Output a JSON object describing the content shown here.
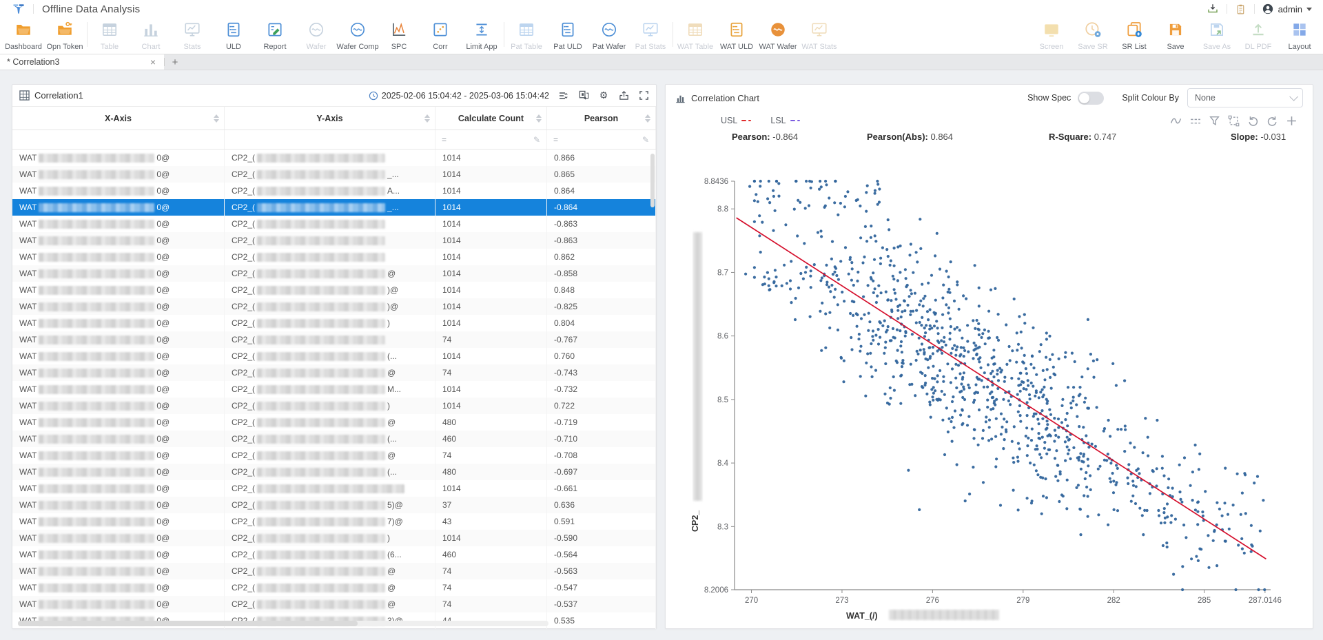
{
  "app": {
    "title": "Offline Data Analysis"
  },
  "header_right": {
    "user": "admin"
  },
  "toolbar": {
    "groups": [
      {
        "items": [
          {
            "label": "Dashboard",
            "icon": "folder",
            "enabled": true,
            "color": "#f09e2e"
          },
          {
            "label": "Opn Token",
            "icon": "folder-key",
            "enabled": true,
            "color": "#f09e2e"
          }
        ]
      },
      {
        "items": [
          {
            "label": "Table",
            "icon": "table",
            "enabled": false,
            "color": "#c6d2de"
          },
          {
            "label": "Chart",
            "icon": "bars",
            "enabled": false,
            "color": "#c6d2de"
          },
          {
            "label": "Stats",
            "icon": "monitor",
            "enabled": false,
            "color": "#c6d2de"
          },
          {
            "label": "ULD",
            "icon": "doc",
            "enabled": true,
            "color": "#4e8fd6"
          },
          {
            "label": "Report",
            "icon": "report",
            "enabled": true,
            "color": "#4e8fd6",
            "color2": "#3da05a"
          },
          {
            "label": "Wafer",
            "icon": "wafer",
            "enabled": false,
            "color": "#c6d2de"
          },
          {
            "label": "Wafer Comp",
            "icon": "wafer",
            "enabled": true,
            "color": "#4e8fd6"
          },
          {
            "label": "SPC",
            "icon": "spc",
            "enabled": true,
            "color": "#5b6770",
            "color2": "#e8833a"
          },
          {
            "label": "Corr",
            "icon": "corr",
            "enabled": true,
            "color": "#4e8fd6",
            "color2": "#e8a23a"
          },
          {
            "label": "Limit App",
            "icon": "limit",
            "enabled": true,
            "color": "#4e8fd6"
          }
        ]
      },
      {
        "items": [
          {
            "label": "Pat Table",
            "icon": "table",
            "enabled": false,
            "color": "#bdd5ef"
          },
          {
            "label": "Pat ULD",
            "icon": "doc",
            "enabled": true,
            "color": "#4e8fd6"
          },
          {
            "label": "Pat Wafer",
            "icon": "wafer",
            "enabled": true,
            "color": "#4e8fd6"
          },
          {
            "label": "Pat Stats",
            "icon": "monitor",
            "enabled": false,
            "color": "#bdd5ef"
          }
        ]
      },
      {
        "items": [
          {
            "label": "WAT Table",
            "icon": "table",
            "enabled": false,
            "color": "#f0ddbc"
          },
          {
            "label": "WAT ULD",
            "icon": "doc",
            "enabled": true,
            "color": "#e8a23a"
          },
          {
            "label": "WAT Wafer",
            "icon": "wafer-fill",
            "enabled": true,
            "color": "#e8913a"
          },
          {
            "label": "WAT Stats",
            "icon": "monitor",
            "enabled": false,
            "color": "#f0ddbc"
          }
        ]
      }
    ],
    "right_items": [
      {
        "label": "Screen",
        "icon": "screen",
        "enabled": false,
        "color": "#f3dfae"
      },
      {
        "label": "Save SR",
        "icon": "clock-badge",
        "enabled": false,
        "color": "#f0cfa0"
      },
      {
        "label": "SR List",
        "icon": "copy-badge",
        "enabled": true,
        "color": "#ef9d3c"
      },
      {
        "label": "Save",
        "icon": "floppy",
        "enabled": true,
        "color": "#ef9d3c"
      },
      {
        "label": "Save As",
        "icon": "floppy-arrow",
        "enabled": false,
        "color": "#bdd5ef"
      },
      {
        "label": "DL PDF",
        "icon": "upload",
        "enabled": false,
        "color": "#c5ddc5"
      },
      {
        "label": "Layout",
        "icon": "layout",
        "enabled": true,
        "color": "#84a9e8"
      }
    ]
  },
  "tabs": {
    "active_label": "* Correlation3",
    "close_label": "×",
    "add_label": "+"
  },
  "table_panel": {
    "title": "Correlation1",
    "date_range": "2025-02-06 15:04:42 - 2025-03-06 15:04:42",
    "columns": [
      "X-Axis",
      "Y-Axis",
      "Calculate Count",
      "Pearson"
    ],
    "filter_operator": "=",
    "header_tools": [
      "collapse-icon",
      "swap-icon",
      "gear-icon",
      "export-icon",
      "fullscreen-icon"
    ],
    "row_prefixes": {
      "x": "WAT",
      "x_suffix": "0@",
      "y": "CP2_("
    },
    "rows": [
      {
        "count": "1014",
        "pearson": "0.866",
        "ys": ""
      },
      {
        "count": "1014",
        "pearson": "0.865",
        "ys": "_..."
      },
      {
        "count": "1014",
        "pearson": "0.864",
        "ys": "A..."
      },
      {
        "count": "1014",
        "pearson": "-0.864",
        "ys": "_...",
        "sel": true
      },
      {
        "count": "1014",
        "pearson": "-0.863",
        "ys": ""
      },
      {
        "count": "1014",
        "pearson": "-0.863",
        "ys": ""
      },
      {
        "count": "1014",
        "pearson": "0.862",
        "ys": ""
      },
      {
        "count": "1014",
        "pearson": "-0.858",
        "ys": "@"
      },
      {
        "count": "1014",
        "pearson": "0.848",
        "ys": ")@"
      },
      {
        "count": "1014",
        "pearson": "-0.825",
        "ys": ")@"
      },
      {
        "count": "1014",
        "pearson": "0.804",
        "ys": ")"
      },
      {
        "count": "74",
        "pearson": "-0.767",
        "ys": ""
      },
      {
        "count": "1014",
        "pearson": "0.760",
        "ys": "(..."
      },
      {
        "count": "74",
        "pearson": "-0.743",
        "ys": "@"
      },
      {
        "count": "1014",
        "pearson": "-0.732",
        "ys": "M..."
      },
      {
        "count": "1014",
        "pearson": "0.722",
        "ys": ")"
      },
      {
        "count": "480",
        "pearson": "-0.719",
        "ys": "@"
      },
      {
        "count": "460",
        "pearson": "-0.710",
        "ys": "(..."
      },
      {
        "count": "74",
        "pearson": "-0.708",
        "ys": "@"
      },
      {
        "count": "480",
        "pearson": "-0.697",
        "ys": "(..."
      },
      {
        "count": "1014",
        "pearson": "-0.661",
        "ys": "",
        "yw": 214
      },
      {
        "count": "37",
        "pearson": "0.636",
        "ys": "5)@"
      },
      {
        "count": "43",
        "pearson": "0.591",
        "ys": "7)@"
      },
      {
        "count": "1014",
        "pearson": "-0.590",
        "ys": ")"
      },
      {
        "count": "460",
        "pearson": "-0.564",
        "ys": "(6..."
      },
      {
        "count": "74",
        "pearson": "-0.563",
        "ys": "@"
      },
      {
        "count": "74",
        "pearson": "-0.547",
        "ys": "@"
      },
      {
        "count": "74",
        "pearson": "-0.537",
        "ys": "@"
      },
      {
        "count": "44",
        "pearson": "0.535",
        "ys": "3)@"
      }
    ]
  },
  "chart_panel": {
    "title": "Correlation Chart",
    "show_spec_label": "Show Spec",
    "show_spec_on": false,
    "split_colour_label": "Split Colour By",
    "split_colour_value": "None",
    "legend": [
      {
        "label": "USL",
        "color": "#e02b2b"
      },
      {
        "label": "LSL",
        "color": "#7b5ce0"
      }
    ],
    "tools": [
      "curve-icon",
      "dash-icon",
      "funnel-icon",
      "frame-icon",
      "undo-icon",
      "redo-icon",
      "plus-icon"
    ],
    "stats": [
      {
        "label": "Pearson:",
        "value": "-0.864"
      },
      {
        "label": "Pearson(Abs):",
        "value": "0.864"
      },
      {
        "label": "R-Square:",
        "value": "0.747"
      },
      {
        "label": "Slope:",
        "value": "-0.031"
      }
    ]
  },
  "chart_data": {
    "type": "scatter",
    "xlabel_prefix": "WAT_(/)",
    "xlabel_redacted": true,
    "ylabel_prefix": "CP2_",
    "ylabel_redacted": true,
    "x_ticks": [
      "270",
      "273",
      "276",
      "279",
      "282",
      "285",
      "287.0146"
    ],
    "y_ticks": [
      "8.2006",
      "8.3",
      "8.4",
      "8.5",
      "8.6",
      "8.7",
      "8.8",
      "8.8436"
    ],
    "xlim": [
      269.44,
      287.2
    ],
    "ylim": [
      8.2006,
      8.8436
    ],
    "n_points": 1014,
    "point_color": "#31659c",
    "trend_line": {
      "color": "#d50f2c",
      "x1": 269.5,
      "y1": 8.786,
      "x2": 287.05,
      "y2": 8.249
    },
    "pearson": -0.864,
    "pearson_abs": 0.864,
    "r_square": 0.747,
    "slope": -0.031,
    "legend_position": "top-left",
    "grid": false,
    "generator": {
      "seed": 42,
      "clusters": [
        {
          "kind": "trend",
          "n": 858,
          "x_mean": 277.4,
          "x_sd": 3.3,
          "x_min": 270.1,
          "x_max": 287.0,
          "y_sd": 0.068
        },
        {
          "kind": "trend",
          "n": 20,
          "x_mean": 278.0,
          "x_sd": 4.5,
          "x_min": 270.3,
          "x_max": 286.8,
          "y_sd": 0.14
        },
        {
          "kind": "blob",
          "n": 48,
          "x_min": 269.9,
          "x_max": 274.3,
          "y_mean": 8.831,
          "y_sd": 0.02
        },
        {
          "kind": "blob",
          "n": 26,
          "x_min": 269.5,
          "x_max": 273.2,
          "y_mean": 8.688,
          "y_sd": 0.012
        },
        {
          "kind": "blob",
          "n": 62,
          "x_min": 283.4,
          "x_max": 287.0,
          "y_mean": 8.312,
          "y_sd": 0.042
        }
      ]
    }
  }
}
